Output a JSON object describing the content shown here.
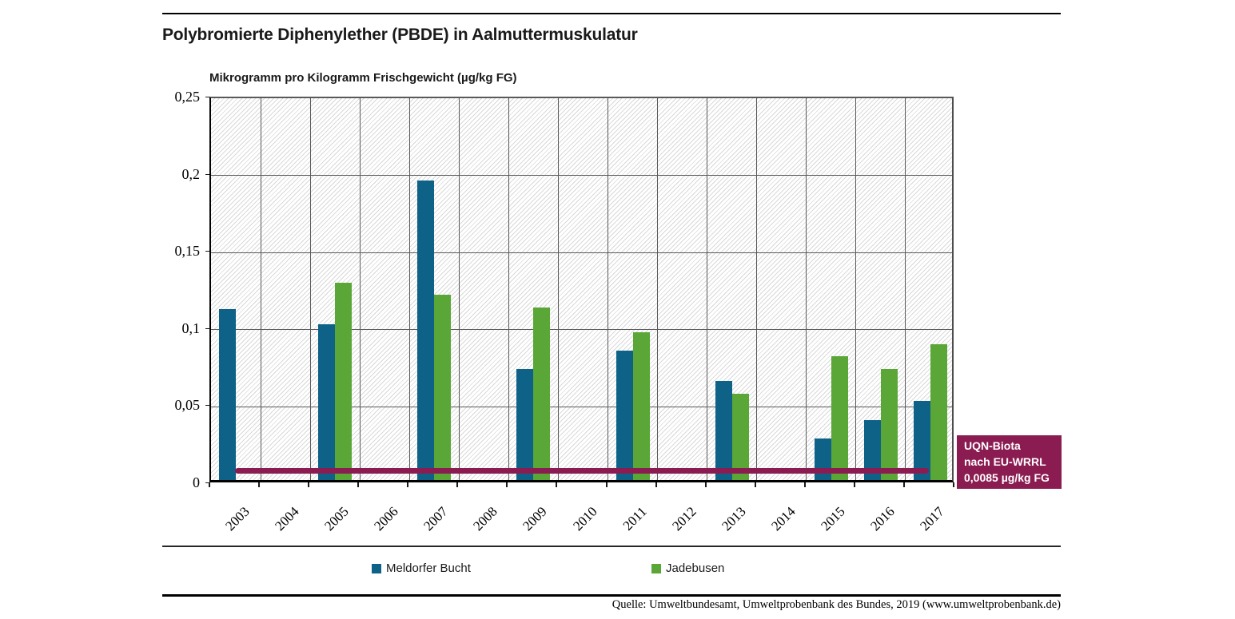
{
  "header": {
    "title": "Polybromierte Diphenylether (PBDE) in Aalmuttermuskulatur",
    "unit_label": "Mikrogramm pro Kilogramm Frischgewicht (µg/kg FG)"
  },
  "chart_data": {
    "type": "bar",
    "categories": [
      "2003",
      "2004",
      "2005",
      "2006",
      "2007",
      "2008",
      "2009",
      "2010",
      "2011",
      "2012",
      "2013",
      "2014",
      "2015",
      "2016",
      "2017"
    ],
    "series": [
      {
        "name": "Meldorfer Bucht",
        "color": "#0e6287",
        "values": [
          0.111,
          null,
          0.101,
          null,
          0.194,
          null,
          0.072,
          null,
          0.084,
          null,
          0.064,
          null,
          0.027,
          0.039,
          0.051
        ]
      },
      {
        "name": "Jadebusen",
        "color": "#5aa637",
        "values": [
          null,
          null,
          0.128,
          null,
          0.12,
          null,
          0.112,
          null,
          0.096,
          null,
          0.056,
          null,
          0.08,
          0.072,
          0.088
        ]
      }
    ],
    "ylim": [
      0,
      0.25
    ],
    "ytick_values": [
      0,
      0.05,
      0.1,
      0.15,
      0.2,
      0.25
    ],
    "ytick_labels": [
      "0",
      "0,05",
      "0,1",
      "0,15",
      "0,2",
      "0,25"
    ],
    "grid": true,
    "reference_line": {
      "value": 0.0085,
      "color": "#8b1c51",
      "label_lines": [
        "UQN-Biota",
        "nach EU-WRRL",
        "0,0085 µg/kg FG"
      ]
    },
    "title": "Polybromierte Diphenylether (PBDE) in Aalmuttermuskulatur",
    "ylabel": "Mikrogramm pro Kilogramm Frischgewicht (µg/kg FG)",
    "legend_position": "bottom"
  },
  "legend": {
    "items": [
      {
        "label": "Meldorfer Bucht",
        "color": "#0e6287"
      },
      {
        "label": "Jadebusen",
        "color": "#5aa637"
      }
    ]
  },
  "footer": {
    "source": "Quelle: Umweltbundesamt, Umweltprobenbank des Bundes, 2019 (www.umweltprobenbank.de)"
  }
}
